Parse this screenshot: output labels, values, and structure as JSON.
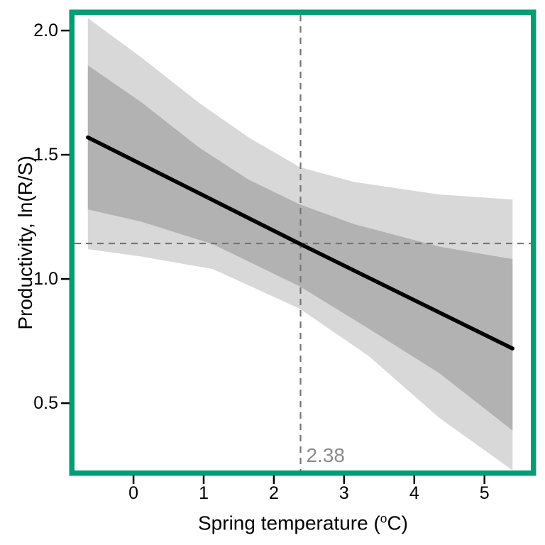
{
  "figure": {
    "border_color": "#009E73",
    "background_color": "#ffffff",
    "inner_band_color": "#b2b2b2",
    "outer_band_color": "#d8d8d8",
    "line_color": "#000000",
    "dashed_line_color": "#757575",
    "annotation_color": "#8a8a8a"
  },
  "chart_data": {
    "type": "line",
    "title": "",
    "xlabel": "Spring temperature (°C)",
    "xlabel_parts": {
      "prefix": "Spring temperature (",
      "sup": "o",
      "suffix": "C)"
    },
    "ylabel": "Productivity, ln(R/S)",
    "xlim": [
      -0.84,
      5.66
    ],
    "ylim": [
      0.229,
      2.063
    ],
    "grid": false,
    "legend": "none",
    "xticks": [
      "0",
      "1",
      "2",
      "3",
      "4",
      "5"
    ],
    "xtick_values": [
      0,
      1,
      2,
      3,
      4,
      5
    ],
    "yticks": [
      "0.5",
      "1.0",
      "1.5",
      "2.0"
    ],
    "ytick_values": [
      0.5,
      1.0,
      1.5,
      2.0
    ],
    "series": [
      {
        "name": "regression-line",
        "kind": "line",
        "points": [
          [
            -0.65,
            1.57
          ],
          [
            2.38,
            1.14
          ],
          [
            5.4,
            0.72
          ]
        ]
      },
      {
        "name": "inner-confidence-band",
        "kind": "band",
        "top": [
          [
            -0.65,
            1.86
          ],
          [
            0.12,
            1.71
          ],
          [
            0.93,
            1.53
          ],
          [
            1.64,
            1.4
          ],
          [
            2.37,
            1.3
          ],
          [
            3.15,
            1.22
          ],
          [
            4.36,
            1.13
          ],
          [
            5.4,
            1.08
          ]
        ],
        "bottom": [
          [
            -0.65,
            1.28
          ],
          [
            0.12,
            1.23
          ],
          [
            1.13,
            1.14
          ],
          [
            2.37,
            0.97
          ],
          [
            3.35,
            0.8
          ],
          [
            4.36,
            0.62
          ],
          [
            5.4,
            0.39
          ]
        ]
      },
      {
        "name": "outer-confidence-band",
        "kind": "band",
        "top": [
          [
            -0.65,
            2.05
          ],
          [
            0.12,
            1.89
          ],
          [
            0.93,
            1.71
          ],
          [
            1.64,
            1.57
          ],
          [
            2.37,
            1.45
          ],
          [
            3.15,
            1.39
          ],
          [
            4.36,
            1.34
          ],
          [
            5.4,
            1.32
          ]
        ],
        "bottom": [
          [
            -0.65,
            1.12
          ],
          [
            0.12,
            1.09
          ],
          [
            1.13,
            1.04
          ],
          [
            2.37,
            0.88
          ],
          [
            3.35,
            0.69
          ],
          [
            4.36,
            0.44
          ],
          [
            5.4,
            0.23
          ]
        ]
      }
    ],
    "reference_lines": {
      "vertical_x": 2.38,
      "horizontal_y": 1.143,
      "style": "dashed"
    },
    "annotation": {
      "text": "2.38",
      "x": 2.46,
      "y": 0.29
    }
  }
}
